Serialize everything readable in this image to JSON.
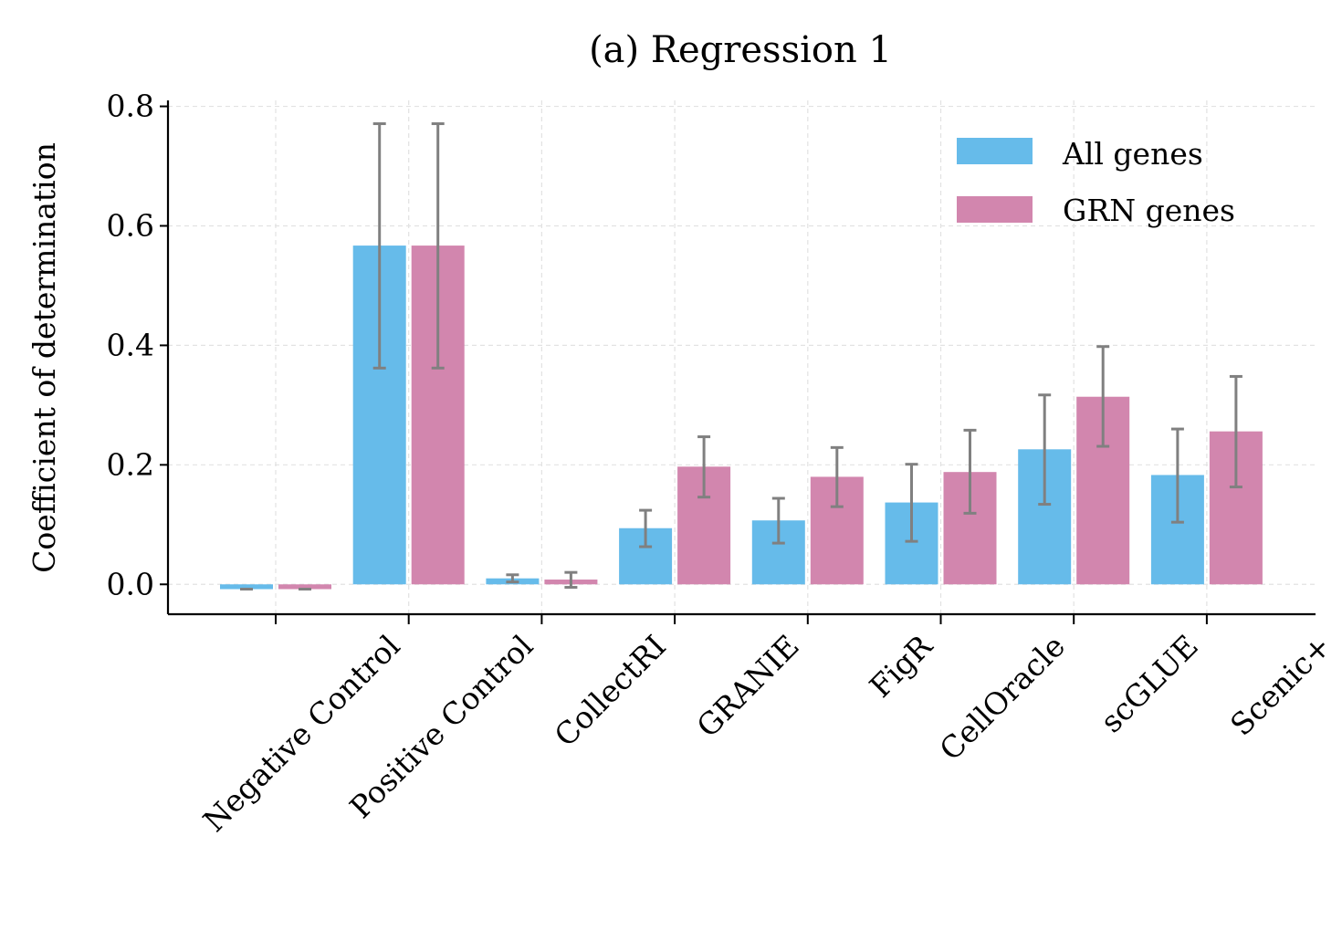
{
  "chart_data": {
    "type": "bar",
    "title": "(a) Regression 1",
    "xlabel": "",
    "ylabel": "Coefficient of determination",
    "categories": [
      "Negative Control",
      "Positive Control",
      "CollectRI",
      "GRANIE",
      "FigR",
      "CellOracle",
      "scGLUE",
      "Scenic+"
    ],
    "series": [
      {
        "name": "All genes",
        "color": "#66bbea",
        "values": [
          -0.008,
          0.567,
          0.01,
          0.094,
          0.107,
          0.137,
          0.226,
          0.183
        ],
        "error_low": [
          -0.008,
          0.362,
          0.004,
          0.063,
          0.069,
          0.072,
          0.134,
          0.104
        ],
        "error_high": [
          -0.008,
          0.771,
          0.016,
          0.124,
          0.144,
          0.201,
          0.317,
          0.26
        ]
      },
      {
        "name": "GRN genes",
        "color": "#d286ae",
        "values": [
          -0.008,
          0.567,
          0.008,
          0.197,
          0.18,
          0.188,
          0.314,
          0.256
        ],
        "error_low": [
          -0.008,
          0.362,
          -0.005,
          0.146,
          0.13,
          0.119,
          0.231,
          0.163
        ],
        "error_high": [
          -0.008,
          0.771,
          0.02,
          0.247,
          0.229,
          0.258,
          0.398,
          0.348
        ]
      }
    ],
    "ylim": [
      -0.05,
      0.81
    ],
    "yticks": [
      0.0,
      0.2,
      0.4,
      0.6,
      0.8
    ],
    "ytick_labels": [
      "0.0",
      "0.2",
      "0.4",
      "0.6",
      "0.8"
    ],
    "error_color": "#808080",
    "grid": true,
    "legend_position": "top-right"
  }
}
